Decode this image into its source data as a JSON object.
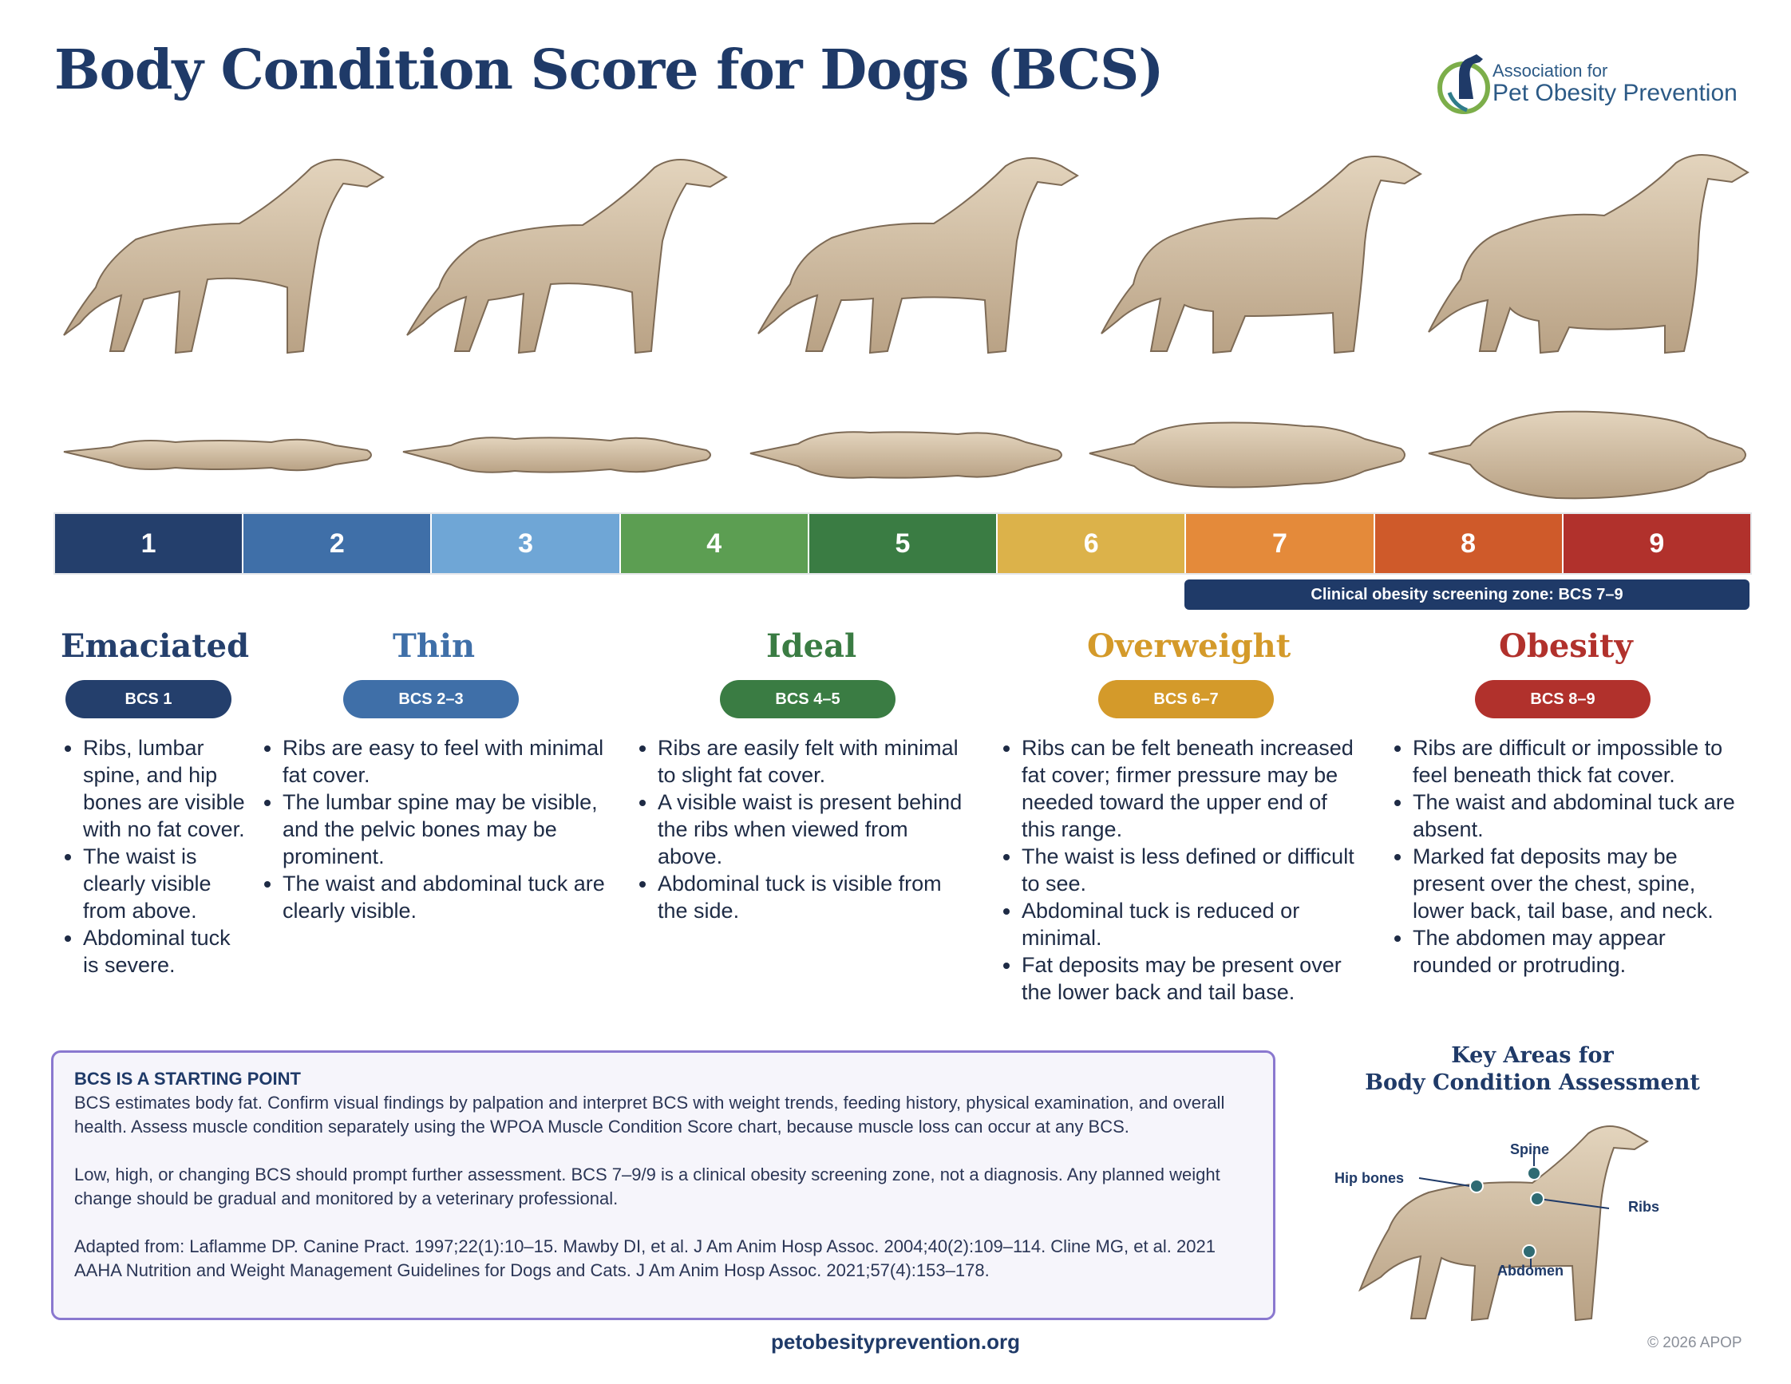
{
  "title": "Body Condition Score for Dogs (BCS)",
  "logo": {
    "line1": "Association for",
    "line2": "Pet Obesity Prevention"
  },
  "scale": [
    {
      "label": "1",
      "color": "#243f6c"
    },
    {
      "label": "2",
      "color": "#3f6fa8"
    },
    {
      "label": "3",
      "color": "#6fa6d6"
    },
    {
      "label": "4",
      "color": "#5c9e52"
    },
    {
      "label": "5",
      "color": "#3a7c43"
    },
    {
      "label": "6",
      "color": "#dcb24a"
    },
    {
      "label": "7",
      "color": "#e48a3a"
    },
    {
      "label": "8",
      "color": "#cf5a2a"
    },
    {
      "label": "9",
      "color": "#b1312c"
    }
  ],
  "zone_label": "Clinical obesity screening zone: BCS 7–9",
  "categories": [
    {
      "title": "Emaciated",
      "pill": "BCS 1",
      "color": "#243f6c",
      "bullets": [
        "Ribs, lumbar spine, and hip bones are visible with no fat cover.",
        "The waist is clearly visible from above.",
        "Abdominal tuck is severe."
      ]
    },
    {
      "title": "Thin",
      "pill": "BCS 2–3",
      "color": "#3f6fa8",
      "bullets": [
        "Ribs are easy to feel with minimal fat cover.",
        "The lumbar spine may be visible, and the pelvic bones may be prominent.",
        "The waist and abdominal tuck are clearly visible."
      ]
    },
    {
      "title": "Ideal",
      "pill": "BCS 4–5",
      "color": "#3a7c43",
      "bullets": [
        "Ribs are easily felt with minimal to slight fat cover.",
        "A visible waist is present behind the ribs when viewed from above.",
        "Abdominal tuck is visible from the side."
      ]
    },
    {
      "title": "Overweight",
      "pill": "BCS 6–7",
      "color": "#d49a2a",
      "bullets": [
        "Ribs can be felt beneath increased fat cover; firmer pressure may be needed toward the upper end of this range.",
        "The waist is less defined or difficult to see.",
        "Abdominal tuck is reduced or minimal.",
        "Fat deposits may be present over the lower back and tail base."
      ]
    },
    {
      "title": "Obesity",
      "pill": "BCS 8–9",
      "color": "#b1312c",
      "bullets": [
        "Ribs are difficult or impossible to feel beneath thick fat cover.",
        "The waist and abdominal tuck are absent.",
        "Marked fat deposits may be present over the chest, spine, lower back, tail base, and neck.",
        "The abdomen may appear rounded or protruding."
      ]
    }
  ],
  "info": {
    "heading": "BCS IS A STARTING POINT",
    "p1": "BCS estimates body fat. Confirm visual findings by palpation and interpret BCS with weight trends, feeding history, physical examination, and overall health. Assess muscle condition separately using the WPOA Muscle Condition Score chart, because muscle loss can occur at any BCS.",
    "p2": "Low, high, or changing BCS should prompt further assessment. BCS 7–9/9 is a clinical obesity screening zone, not a diagnosis. Any planned weight change should be gradual and monitored by a veterinary professional.",
    "p3": "Adapted from: Laflamme DP. Canine Pract. 1997;22(1):10–15. Mawby DI, et al. J Am Anim Hosp Assoc. 2004;40(2):109–114. Cline MG, et al. 2021 AAHA Nutrition and Weight Management Guidelines for Dogs and Cats. J Am Anim Hosp Assoc. 2021;57(4):153–178."
  },
  "key": {
    "title_line1": "Key Areas for",
    "title_line2": "Body Condition Assessment",
    "labels": {
      "spine": "Spine",
      "hip": "Hip bones",
      "ribs": "Ribs",
      "abdomen": "Abdomen"
    }
  },
  "footer": {
    "site": "petobesityprevention.org",
    "copyright": "© 2026 APOP"
  }
}
